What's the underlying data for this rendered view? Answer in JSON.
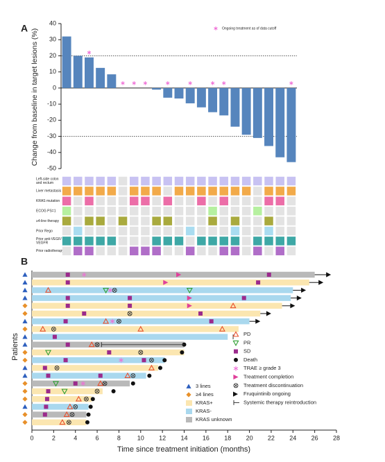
{
  "chart_data": [
    {
      "type": "bar",
      "panel": "A",
      "ylabel": "Change from baseline in target lesions (%)",
      "legend": "Ongoing treatment as of data cutoff",
      "color": "#5685bd",
      "asterisk_color": "#ef6fd6",
      "ylim": [
        -50,
        40
      ],
      "yticks": [
        -50,
        -40,
        -30,
        -20,
        -10,
        0,
        10,
        20,
        30,
        40
      ],
      "reference_lines": [
        20,
        -30
      ],
      "values": [
        32,
        20,
        19,
        12.5,
        8.5,
        0,
        0,
        0,
        -1,
        -6,
        -6.5,
        -9.5,
        -12,
        -15,
        -17,
        -24,
        -29,
        -31,
        -36,
        -43,
        -46
      ],
      "ongoing": [
        false,
        false,
        true,
        false,
        false,
        true,
        true,
        true,
        false,
        true,
        false,
        true,
        false,
        true,
        true,
        false,
        false,
        false,
        false,
        false,
        true
      ],
      "annotation_rows": [
        {
          "label": [
            "Left-side colon",
            "and rectum"
          ],
          "color": "#c8c2f2",
          "values": [
            1,
            1,
            1,
            1,
            1,
            0,
            1,
            1,
            1,
            1,
            1,
            1,
            1,
            1,
            1,
            1,
            1,
            1,
            1,
            1,
            1
          ]
        },
        {
          "label": [
            "Liver  metastasis"
          ],
          "color": "#f2aa4a",
          "values": [
            1,
            1,
            1,
            1,
            1,
            0,
            1,
            1,
            1,
            0,
            1,
            1,
            1,
            1,
            1,
            1,
            1,
            0,
            1,
            1,
            1
          ]
        },
        {
          "label": [
            "KRAS mutation"
          ],
          "color": "#ec6ea8",
          "values": [
            1,
            0,
            1,
            0,
            0,
            0,
            1,
            1,
            0,
            1,
            0,
            0,
            1,
            0,
            1,
            0,
            0,
            0,
            1,
            1,
            0
          ]
        },
        {
          "label": [
            "ECOG PS=1"
          ],
          "color": "#b6f0a0",
          "values": [
            1,
            0,
            0,
            0,
            0,
            0,
            0,
            0,
            0,
            0,
            0,
            0,
            0,
            1,
            0,
            0,
            0,
            1,
            0,
            0,
            0
          ]
        },
        {
          "label": [
            "≥4-line therapy"
          ],
          "color": "#a9aa3e",
          "values": [
            1,
            0,
            1,
            1,
            0,
            1,
            0,
            0,
            1,
            1,
            0,
            0,
            0,
            1,
            0,
            1,
            0,
            0,
            1,
            0,
            0
          ]
        },
        {
          "label": [
            "Prior Rego"
          ],
          "color": "#a9dcf0",
          "values": [
            0,
            1,
            0,
            0,
            0,
            0,
            0,
            0,
            0,
            0,
            0,
            1,
            0,
            0,
            0,
            1,
            0,
            0,
            1,
            0,
            0
          ]
        },
        {
          "label": [
            "Prior anti-VEGF/",
            "VEGFR"
          ],
          "color": "#3ea8a6",
          "values": [
            1,
            1,
            1,
            1,
            1,
            0,
            0,
            0,
            1,
            1,
            1,
            0,
            1,
            1,
            1,
            1,
            0,
            1,
            1,
            1,
            1
          ]
        },
        {
          "label": [
            "Prior radiotherapy"
          ],
          "color": "#b06ec8",
          "values": [
            0,
            1,
            1,
            0,
            0,
            0,
            1,
            1,
            1,
            0,
            0,
            1,
            0,
            0,
            1,
            1,
            0,
            1,
            0,
            1,
            0
          ]
        }
      ]
    },
    {
      "type": "swimmer",
      "panel": "B",
      "xlabel": "Time since treatment initiation (months)",
      "ylabel": "Patients",
      "xlim": [
        0,
        28
      ],
      "xticks": [
        0,
        2,
        4,
        6,
        8,
        10,
        12,
        14,
        16,
        18,
        20,
        22,
        24,
        26,
        28
      ],
      "line_groups": [
        {
          "label": "3 lines",
          "color": "#2d5fbe",
          "symbol": "triangle",
          "rows": [
            true,
            true,
            true,
            true,
            false,
            false,
            true,
            false,
            true,
            true,
            false,
            false,
            true,
            true,
            false,
            false,
            false,
            true,
            false,
            false
          ]
        },
        {
          "label": "≥4 lines",
          "color": "#e8902a",
          "symbol": "diamond",
          "rows": [
            false,
            false,
            false,
            false,
            true,
            true,
            false,
            true,
            false,
            false,
            true,
            true,
            false,
            false,
            true,
            true,
            true,
            false,
            true,
            true
          ]
        }
      ],
      "bar_groups": [
        {
          "label": "KRAS+",
          "color": "#fbe6b0",
          "ends": [
            null,
            25.5,
            null,
            null,
            23,
            21,
            null,
            19,
            null,
            null,
            14,
            null,
            11.6,
            null,
            null,
            6.5,
            5.5,
            null,
            null,
            5
          ]
        },
        {
          "label": "KRAS-",
          "color": "#a9d8ee",
          "ends": [
            null,
            null,
            24,
            23.8,
            null,
            null,
            20,
            null,
            18,
            null,
            null,
            12.2,
            null,
            10.5,
            null,
            null,
            null,
            5.2,
            null,
            null
          ]
        },
        {
          "label": "KRAS unknown",
          "color": "#b9b9b9",
          "ends": [
            26,
            null,
            null,
            null,
            null,
            null,
            null,
            null,
            null,
            14,
            null,
            null,
            null,
            null,
            9,
            null,
            null,
            null,
            5,
            null
          ]
        }
      ],
      "markers": [
        {
          "label": "PD",
          "color": "#e8502e",
          "symbol": "triangle-open",
          "x": [
            [],
            [],
            [
              1.5
            ],
            [],
            [
              18.5
            ],
            [],
            [
              6.8
            ],
            [
              1,
              10,
              17.5
            ],
            [],
            [
              5.5
            ],
            [],
            [],
            [
              11
            ],
            [
              8.8
            ],
            [
              6.3
            ],
            [],
            [
              4.3
            ],
            [
              3.5
            ],
            [
              3.2
            ],
            [
              2.8
            ]
          ]
        },
        {
          "label": "PR",
          "color": "#2f9f32",
          "symbol": "triangle-down-open",
          "x": [
            [],
            [],
            [
              6.8,
              14.5
            ],
            [],
            [],
            [],
            [],
            [],
            [],
            [],
            [
              1.5
            ],
            [],
            [],
            [],
            [
              2.2
            ],
            [
              3
            ],
            [],
            [],
            [],
            []
          ]
        },
        {
          "label": "SD",
          "color": "#9b2a8c",
          "symbol": "square",
          "x": [
            [
              3.3,
              21.8
            ],
            [
              3.3,
              20.8
            ],
            [],
            [
              3.3,
              9,
              19.5
            ],
            [
              3.3,
              9
            ],
            [
              4.8,
              15.5
            ],
            [
              3.1,
              16.5
            ],
            [],
            [
              2.1
            ],
            [
              3.3
            ],
            [
              7.1
            ],
            [
              3.1,
              10.3
            ],
            [
              1.2
            ],
            [
              1.5,
              6.3
            ],
            [
              4
            ],
            [
              1.5
            ],
            [
              1.4
            ],
            [
              1.3
            ],
            [
              1.2
            ],
            []
          ]
        },
        {
          "label": "Death",
          "color": "#111111",
          "symbol": "circle",
          "x": [
            [],
            [],
            [],
            [],
            [],
            [],
            [],
            [],
            [],
            [
              14
            ],
            [
              13.8
            ],
            [
              12.2
            ],
            [
              11.8
            ],
            [
              10.8
            ],
            [
              9.3
            ],
            [
              7.5
            ],
            [
              5.6
            ],
            [
              5.4
            ],
            [
              5.2
            ],
            [
              5.1
            ]
          ]
        },
        {
          "label": "TRAE ≥ grade 3",
          "color": "#ef6fd6",
          "symbol": "asterisk",
          "x": [
            [
              4.8
            ],
            [],
            [
              7.2
            ],
            [],
            [],
            [],
            [
              7.4
            ],
            [],
            [],
            [],
            [],
            [
              8.2
            ],
            [],
            [],
            [
              4.7
            ],
            [],
            [],
            [],
            [],
            []
          ]
        },
        {
          "label": "Treatment completion",
          "color": "#e0409a",
          "symbol": "triangle-right",
          "x": [
            [
              13.5
            ],
            [
              12.3
            ],
            [],
            [
              14.5
            ],
            [
              14.5
            ],
            [],
            [],
            [],
            [],
            [],
            [],
            [],
            [],
            [],
            [],
            [],
            [],
            [],
            [],
            []
          ]
        },
        {
          "label": "Treatment discontinuation",
          "color": "#333333",
          "symbol": "circle-x",
          "x": [
            [],
            [],
            [
              7.6
            ],
            [],
            [],
            [
              9
            ],
            [
              8
            ],
            [
              2
            ],
            [],
            [
              6
            ],
            [
              10
            ],
            [
              11
            ],
            [
              2.3
            ],
            [
              9.3
            ],
            [
              6.7
            ],
            [
              6
            ],
            [
              5
            ],
            [
              4
            ],
            [
              3.7
            ],
            [
              3.4
            ]
          ]
        },
        {
          "label": "Fruquintinib ongoing",
          "color": "#111111",
          "symbol": "arrow",
          "x": [
            [
              27.5
            ],
            [
              26.8
            ],
            [
              25.2
            ],
            [
              24.8
            ],
            [
              24.2
            ],
            [
              22
            ],
            [
              21
            ],
            [],
            [],
            [],
            [],
            [],
            [],
            [],
            [],
            [],
            [],
            [],
            [],
            []
          ]
        },
        {
          "label": "Systemic therapy reintroduction",
          "color": "#333333",
          "symbol": "reintro",
          "x": [
            [],
            [],
            [],
            [],
            [],
            [],
            [],
            [],
            [
              18.5
            ],
            [
              6.4
            ],
            [],
            [],
            [],
            [],
            [],
            [],
            [],
            [],
            [],
            []
          ]
        }
      ]
    }
  ]
}
